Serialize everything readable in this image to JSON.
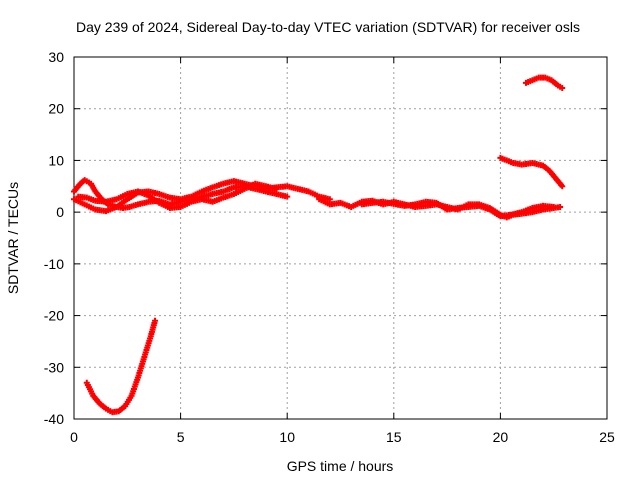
{
  "chart_data": {
    "type": "scatter",
    "title": "Day 239 of 2024, Sidereal Day-to-day VTEC variation (SDTVAR) for receiver osls",
    "xlabel": "GPS time / hours",
    "ylabel": "SDTVAR / TECUs",
    "xlim": [
      0,
      25
    ],
    "ylim": [
      -40,
      30
    ],
    "xticks": [
      0,
      5,
      10,
      15,
      20,
      25
    ],
    "yticks": [
      -40,
      -30,
      -20,
      -10,
      0,
      10,
      20,
      30
    ],
    "grid": true,
    "marker_color": "#ff0000",
    "series": [
      {
        "name": "satellite-track-a",
        "points": [
          [
            0.0,
            4.0
          ],
          [
            0.3,
            5.5
          ],
          [
            0.5,
            6.2
          ],
          [
            0.8,
            5.5
          ],
          [
            1.0,
            4.0
          ],
          [
            1.3,
            2.5
          ],
          [
            1.6,
            1.5
          ],
          [
            2.0,
            1.0
          ],
          [
            2.3,
            0.8
          ],
          [
            2.6,
            1.0
          ],
          [
            3.0,
            1.5
          ],
          [
            3.5,
            2.0
          ],
          [
            4.0,
            2.2
          ],
          [
            4.5,
            1.5
          ],
          [
            5.0,
            2.0
          ],
          [
            5.5,
            2.5
          ],
          [
            6.0,
            3.0
          ],
          [
            6.5,
            3.5
          ],
          [
            7.0,
            4.0
          ],
          [
            7.5,
            4.8
          ],
          [
            8.0,
            5.0
          ],
          [
            8.5,
            4.5
          ],
          [
            9.0,
            4.0
          ],
          [
            9.5,
            3.5
          ],
          [
            10.0,
            3.0
          ]
        ]
      },
      {
        "name": "satellite-track-b",
        "points": [
          [
            0.0,
            2.5
          ],
          [
            0.5,
            1.5
          ],
          [
            1.0,
            0.5
          ],
          [
            1.5,
            0.2
          ],
          [
            2.0,
            1.0
          ],
          [
            2.5,
            2.5
          ],
          [
            3.0,
            3.8
          ],
          [
            3.5,
            4.0
          ],
          [
            4.0,
            3.5
          ],
          [
            4.5,
            2.8
          ],
          [
            5.0,
            2.5
          ],
          [
            5.5,
            3.0
          ],
          [
            6.0,
            4.0
          ],
          [
            6.5,
            4.8
          ],
          [
            7.0,
            5.5
          ],
          [
            7.5,
            6.0
          ],
          [
            8.0,
            5.5
          ],
          [
            8.5,
            5.0
          ],
          [
            9.0,
            4.5
          ],
          [
            9.5,
            4.8
          ],
          [
            10.0,
            5.0
          ],
          [
            10.5,
            4.5
          ],
          [
            11.0,
            4.0
          ],
          [
            11.5,
            3.0
          ],
          [
            12.0,
            2.5
          ]
        ]
      },
      {
        "name": "satellite-track-c",
        "points": [
          [
            0.2,
            3.0
          ],
          [
            0.6,
            2.8
          ],
          [
            1.0,
            2.2
          ],
          [
            1.5,
            2.0
          ],
          [
            2.0,
            2.5
          ],
          [
            2.5,
            3.5
          ],
          [
            3.0,
            4.0
          ],
          [
            3.5,
            3.2
          ],
          [
            4.0,
            1.8
          ],
          [
            4.5,
            0.8
          ],
          [
            5.0,
            1.0
          ],
          [
            5.5,
            2.0
          ],
          [
            6.0,
            2.5
          ],
          [
            6.5,
            2.0
          ],
          [
            7.0,
            2.8
          ],
          [
            7.5,
            3.5
          ],
          [
            8.0,
            4.5
          ],
          [
            8.5,
            5.5
          ],
          [
            9.0,
            5.0
          ],
          [
            9.5,
            4.5
          ]
        ]
      },
      {
        "name": "satellite-track-d",
        "points": [
          [
            11.5,
            2.5
          ],
          [
            12.0,
            1.5
          ],
          [
            12.5,
            1.8
          ],
          [
            13.0,
            1.0
          ],
          [
            13.5,
            2.0
          ],
          [
            14.0,
            2.2
          ],
          [
            14.5,
            1.5
          ],
          [
            15.0,
            2.0
          ],
          [
            15.5,
            1.5
          ],
          [
            16.0,
            1.0
          ],
          [
            16.5,
            1.2
          ],
          [
            17.0,
            1.5
          ],
          [
            17.5,
            1.0
          ],
          [
            18.0,
            0.5
          ],
          [
            18.5,
            1.5
          ],
          [
            19.0,
            1.5
          ],
          [
            19.5,
            0.8
          ],
          [
            20.0,
            -0.5
          ],
          [
            20.3,
            -1.0
          ],
          [
            20.6,
            -0.5
          ],
          [
            21.0,
            -0.3
          ],
          [
            21.5,
            0.0
          ],
          [
            22.0,
            0.5
          ],
          [
            22.5,
            0.8
          ],
          [
            22.8,
            1.0
          ]
        ]
      },
      {
        "name": "satellite-track-e",
        "points": [
          [
            13.5,
            1.5
          ],
          [
            14.0,
            1.8
          ],
          [
            14.5,
            2.0
          ],
          [
            15.0,
            1.6
          ],
          [
            15.5,
            1.2
          ],
          [
            16.0,
            1.5
          ],
          [
            16.5,
            2.0
          ],
          [
            17.0,
            1.8
          ],
          [
            17.5,
            0.5
          ],
          [
            18.0,
            0.8
          ],
          [
            18.5,
            1.0
          ],
          [
            19.0,
            1.2
          ],
          [
            19.5,
            0.5
          ],
          [
            20.0,
            -0.8
          ],
          [
            20.5,
            -0.5
          ],
          [
            21.0,
            0.0
          ],
          [
            21.5,
            0.8
          ],
          [
            22.0,
            1.2
          ],
          [
            22.5,
            1.0
          ]
        ]
      },
      {
        "name": "satellite-track-f",
        "points": [
          [
            20.0,
            10.5
          ],
          [
            20.3,
            10.0
          ],
          [
            20.6,
            9.5
          ],
          [
            21.0,
            9.2
          ],
          [
            21.5,
            9.5
          ],
          [
            22.0,
            9.0
          ],
          [
            22.3,
            8.0
          ],
          [
            22.6,
            6.5
          ],
          [
            22.9,
            5.0
          ]
        ]
      },
      {
        "name": "satellite-track-g",
        "points": [
          [
            21.2,
            25.0
          ],
          [
            21.5,
            25.5
          ],
          [
            21.8,
            26.0
          ],
          [
            22.1,
            26.0
          ],
          [
            22.4,
            25.5
          ],
          [
            22.7,
            24.5
          ],
          [
            22.9,
            24.0
          ]
        ]
      },
      {
        "name": "satellite-track-h",
        "points": [
          [
            0.6,
            -33.0
          ],
          [
            0.9,
            -35.5
          ],
          [
            1.2,
            -37.0
          ],
          [
            1.5,
            -38.0
          ],
          [
            1.8,
            -38.7
          ],
          [
            2.1,
            -38.5
          ],
          [
            2.4,
            -37.5
          ],
          [
            2.7,
            -35.5
          ],
          [
            3.0,
            -32.0
          ],
          [
            3.3,
            -28.0
          ],
          [
            3.6,
            -24.0
          ],
          [
            3.8,
            -21.0
          ]
        ]
      }
    ]
  }
}
